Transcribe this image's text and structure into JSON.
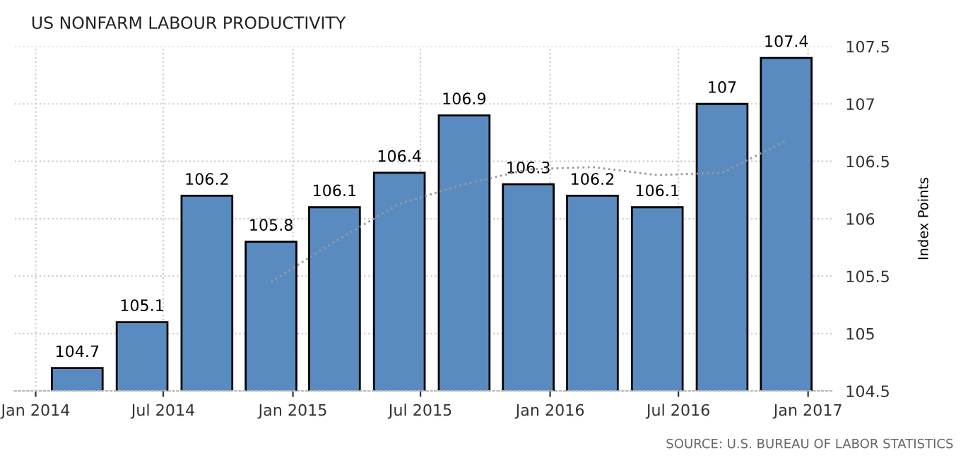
{
  "chart_data": {
    "type": "bar",
    "title": "US NONFARM LABOUR PRODUCTIVITY",
    "ylabel": "Index Points",
    "annotations": [
      "SOURCE: U.S. BUREAU OF LABOR STATISTICS"
    ],
    "x": [
      "2014-03-01",
      "2014-06-01",
      "2014-09-01",
      "2014-12-01",
      "2015-03-01",
      "2015-06-01",
      "2015-09-01",
      "2015-12-01",
      "2016-03-01",
      "2016-06-01",
      "2016-09-01",
      "2016-12-01"
    ],
    "series": [
      {
        "color": "#5a8bc0",
        "values": [
          104.7,
          105.1,
          106.2,
          105.8,
          106.1,
          106.4,
          106.9,
          106.3,
          106.2,
          106.1,
          107,
          107.4
        ],
        "value_labels": [
          "104.7",
          "105.1",
          "106.2",
          "105.8",
          "106.1",
          "106.4",
          "106.9",
          "106.3",
          "106.2",
          "106.1",
          "107",
          "107.4"
        ]
      },
      {
        "type": "line",
        "color": "#999999",
        "line_style": "dotted",
        "x": [
          "2014-12-01",
          "2015-03-01",
          "2015-06-01",
          "2015-09-01",
          "2015-12-01",
          "2016-03-01",
          "2016-06-01",
          "2016-09-01",
          "2016-12-01"
        ],
        "values": [
          105.45,
          105.8,
          106.13,
          106.3,
          106.43,
          106.45,
          106.38,
          106.4,
          106.68
        ]
      }
    ],
    "xlim": [
      "2013-12-02",
      "2017-02-06"
    ],
    "xticks": [
      {
        "value": "2014-01-01",
        "label": "Jan 2014"
      },
      {
        "value": "2014-07-01",
        "label": "Jul 2014"
      },
      {
        "value": "2015-01-01",
        "label": "Jan 2015"
      },
      {
        "value": "2015-07-01",
        "label": "Jul 2015"
      },
      {
        "value": "2016-01-01",
        "label": "Jan 2016"
      },
      {
        "value": "2016-07-01",
        "label": "Jul 2016"
      },
      {
        "value": "2017-01-01",
        "label": "Jan 2017"
      }
    ],
    "ylim": [
      104.5,
      107.5
    ],
    "yticks": [
      104.5,
      105,
      105.5,
      106,
      106.5,
      107,
      107.5
    ],
    "grid": true
  }
}
